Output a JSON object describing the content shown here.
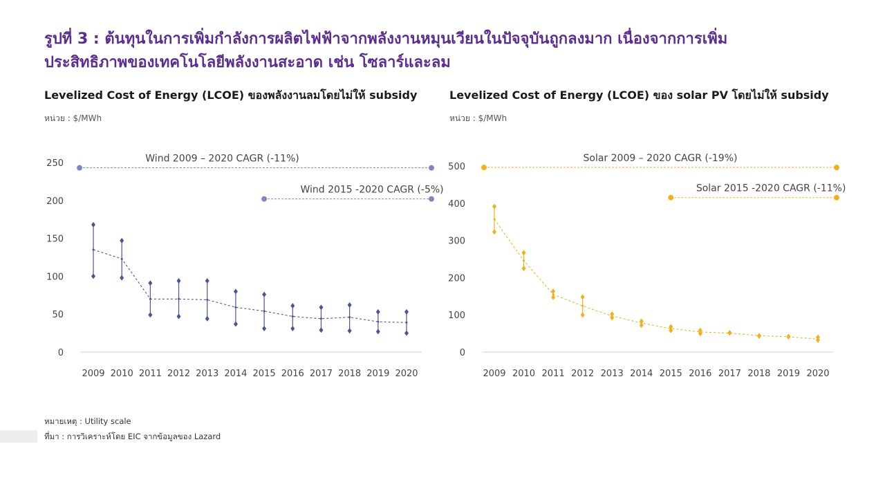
{
  "header": {
    "title_line1": "รูปที่ 3 : ต้นทุนในการเพิ่มกำลังการผลิตไฟฟ้าจากพลังงานหมุนเวียนในปัจจุบันถูกลงมาก เนื่องจากการเพิ่ม",
    "title_line2": "ประสิทธิภาพของเทคโนโลยีพลังงานสะอาด เช่น โซลาร์และลม"
  },
  "colors": {
    "title": "#5b2d8e",
    "wind": "#4a5591",
    "wind_cagr": "#7f86bf",
    "solar": "#f2b01e"
  },
  "footer": {
    "note": "หมายเหตุ : Utility scale",
    "source": "ที่มา :  การวิเคราะห์โดย EIC จากข้อมูลของ Lazard"
  },
  "chart_data": [
    {
      "type": "line",
      "title": "Levelized Cost of Energy (LCOE) ของพลังงานลมโดยไม่ให้ subsidy",
      "unit": "หน่วย : $/MWh",
      "categories": [
        "2009",
        "2010",
        "2011",
        "2012",
        "2013",
        "2014",
        "2015",
        "2016",
        "2017",
        "2018",
        "2019",
        "2020"
      ],
      "ylim": [
        0,
        250
      ],
      "yticks": [
        "0",
        "50",
        "100",
        "150",
        "200",
        "250"
      ],
      "grid": false,
      "color_key": "wind",
      "series": [
        {
          "role": "high",
          "values": [
            168,
            147,
            91,
            94,
            94,
            80,
            76,
            61,
            59,
            62,
            53,
            53
          ]
        },
        {
          "role": "low",
          "values": [
            100,
            98,
            49,
            47,
            44,
            37,
            31,
            31,
            29,
            28,
            27,
            25
          ]
        },
        {
          "role": "mid",
          "values": [
            135,
            123,
            70,
            70,
            69,
            59,
            54,
            47,
            44,
            46,
            40,
            39
          ]
        }
      ],
      "annotations": [
        {
          "text": "Wind 2009 – 2020 CAGR (-11%)",
          "from": "2009",
          "to": "2020",
          "y": 243
        },
        {
          "text": "Wind 2015 -2020 CAGR (-5%)",
          "from": "2015",
          "to": "2020",
          "y": 202
        }
      ]
    },
    {
      "type": "line",
      "title": "Levelized Cost of Energy (LCOE) ของ solar PV โดยไม่ให้ subsidy",
      "unit": "หน่วย : $/MWh",
      "categories": [
        "2009",
        "2010",
        "2011",
        "2012",
        "2013",
        "2014",
        "2015",
        "2016",
        "2017",
        "2018",
        "2019",
        "2020"
      ],
      "ylim": [
        0,
        500
      ],
      "yticks": [
        "0",
        "100",
        "200",
        "300",
        "400",
        "500"
      ],
      "grid": false,
      "color_key": "solar",
      "series": [
        {
          "role": "high",
          "values": [
            391,
            267,
            163,
            148,
            102,
            83,
            68,
            58,
            52,
            44,
            42,
            40
          ]
        },
        {
          "role": "low",
          "values": [
            323,
            225,
            147,
            100,
            92,
            72,
            58,
            50,
            51,
            43,
            41,
            32
          ]
        },
        {
          "role": "mid",
          "values": [
            357,
            246,
            155,
            124,
            97,
            78,
            63,
            54,
            51,
            44,
            41,
            35
          ]
        }
      ],
      "annotations": [
        {
          "text": "Solar 2009 – 2020 CAGR (-19%)",
          "from": "2009",
          "to": "2020",
          "y": 496
        },
        {
          "text": "Solar 2015 -2020 CAGR (-11%)",
          "from": "2015",
          "to": "2020",
          "y": 415
        }
      ]
    }
  ]
}
